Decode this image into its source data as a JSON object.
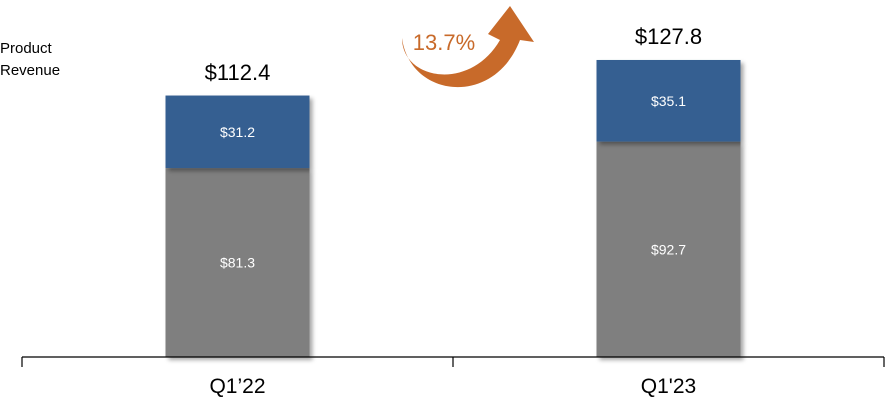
{
  "chart_data": {
    "type": "bar",
    "stacked": true,
    "title": "",
    "xlabel": "",
    "ylabel": "",
    "ylim": [
      0,
      145
    ],
    "grid": false,
    "legend": "none",
    "categories": [
      "Q1’22",
      "Q1'23"
    ],
    "series": [
      {
        "key": "bottom",
        "color": "#7f7f7f",
        "values": [
          81.3,
          92.7
        ],
        "labels": [
          "$81.3",
          "$92.7"
        ]
      },
      {
        "key": "top",
        "color": "#355e91",
        "values": [
          31.2,
          35.1
        ],
        "labels": [
          "$31.2",
          "$35.1"
        ]
      }
    ],
    "totals": [
      112.4,
      127.8
    ],
    "total_labels": [
      "$112.4",
      "$127.8"
    ],
    "series_label_lines": [
      "Product",
      "Revenue"
    ],
    "growth": {
      "label": "13.7%",
      "color": "#c86a2a"
    }
  }
}
